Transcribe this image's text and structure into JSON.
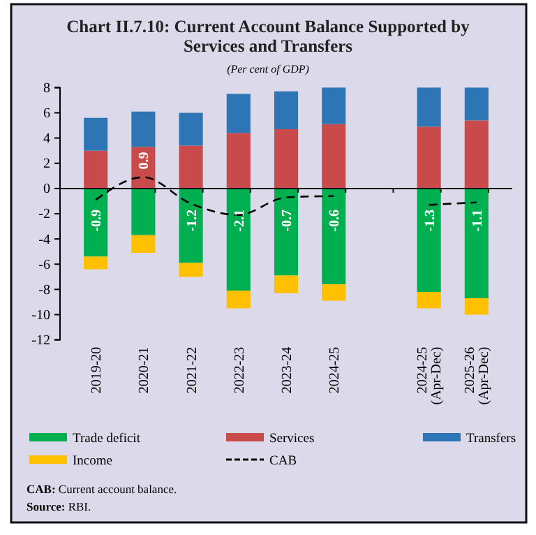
{
  "chart_data": {
    "type": "bar",
    "stacked": true,
    "title": "Chart II.7.10: Current Account Balance Supported by Services and Transfers",
    "subtitle": "(Per cent of GDP)",
    "categories": [
      "2019-20",
      "2020-21",
      "2021-22",
      "2022-23",
      "2023-24",
      "2024-25",
      null,
      "2024-25 (Apr-Dec)",
      "2025-26 (Apr-Dec)"
    ],
    "series": [
      {
        "name": "Trade deficit",
        "color": "#00b050",
        "values": [
          -5.4,
          -3.7,
          -5.9,
          -8.1,
          -6.9,
          -7.6,
          null,
          -8.2,
          -8.7
        ]
      },
      {
        "name": "Services",
        "color": "#c94a4a",
        "values": [
          3.0,
          3.3,
          3.4,
          4.4,
          4.7,
          5.1,
          null,
          4.9,
          5.4
        ]
      },
      {
        "name": "Transfers",
        "color": "#2e75b6",
        "values": [
          2.6,
          2.8,
          2.6,
          3.1,
          3.0,
          2.9,
          null,
          3.1,
          2.6
        ]
      },
      {
        "name": "Income",
        "color": "#ffc000",
        "values": [
          -1.0,
          -1.4,
          -1.1,
          -1.4,
          -1.4,
          -1.3,
          null,
          -1.3,
          -1.3
        ]
      },
      {
        "name": "CAB",
        "type": "line",
        "color": "#000000",
        "line_style": "dashed",
        "values": [
          -0.9,
          0.9,
          -1.2,
          -2.1,
          -0.7,
          -0.6,
          null,
          -1.3,
          -1.1
        ],
        "value_labels": [
          "-0.9",
          "0.9",
          "-1.2",
          "-2.1",
          "-0.7",
          "-0.6",
          null,
          "-1.3",
          "-1.1"
        ]
      }
    ],
    "ylim": [
      -12,
      8
    ],
    "yticks": [
      -12,
      -10,
      -8,
      -6,
      -4,
      -2,
      0,
      2,
      4,
      6,
      8
    ],
    "legend": "bottom",
    "annotations": [
      "CAB: Current account balance.",
      "Source: RBI."
    ]
  }
}
